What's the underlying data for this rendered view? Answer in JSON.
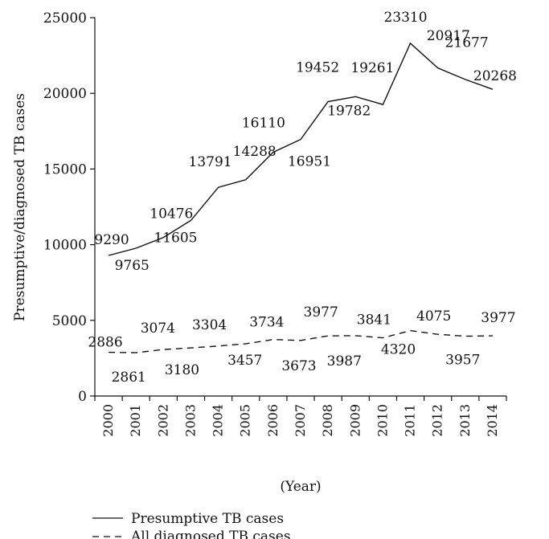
{
  "chart_data": {
    "type": "line",
    "ylabel": "Presumptive/diagnosed TB cases",
    "xlabel": "(Year)",
    "ylim": [
      0,
      25000
    ],
    "yticks": [
      0,
      5000,
      10000,
      15000,
      20000,
      25000
    ],
    "x": [
      "2000",
      "2001",
      "2002",
      "2003",
      "2004",
      "2005",
      "2006",
      "2007",
      "2008",
      "2009",
      "2010",
      "2011",
      "2012",
      "2013",
      "2014"
    ],
    "legend_position": "bottom-left",
    "grid": false,
    "series": [
      {
        "name": "Presumptive TB cases",
        "style": "solid",
        "values": [
          9290,
          9765,
          10476,
          11605,
          13791,
          14288,
          16110,
          16951,
          19452,
          19782,
          19261,
          23310,
          21677,
          20917,
          20268
        ],
        "labels": [
          "9290",
          "9765",
          "10476",
          "11605",
          "13791",
          "14288",
          "16110",
          "16951",
          "19452",
          "19782",
          "19261",
          "23310",
          "21677",
          "20917",
          "20268"
        ]
      },
      {
        "name": "All diagnosed TB cases",
        "style": "dashed",
        "values": [
          2886,
          2861,
          3074,
          3180,
          3304,
          3457,
          3734,
          3673,
          3977,
          3987,
          3841,
          4320,
          4075,
          3957,
          3977
        ],
        "labels": [
          "2886",
          "2861",
          "3074",
          "3180",
          "3304",
          "3457",
          "3734",
          "3673",
          "3977",
          "3987",
          "3841",
          "4320",
          "4075",
          "3957",
          "3977"
        ]
      }
    ]
  }
}
